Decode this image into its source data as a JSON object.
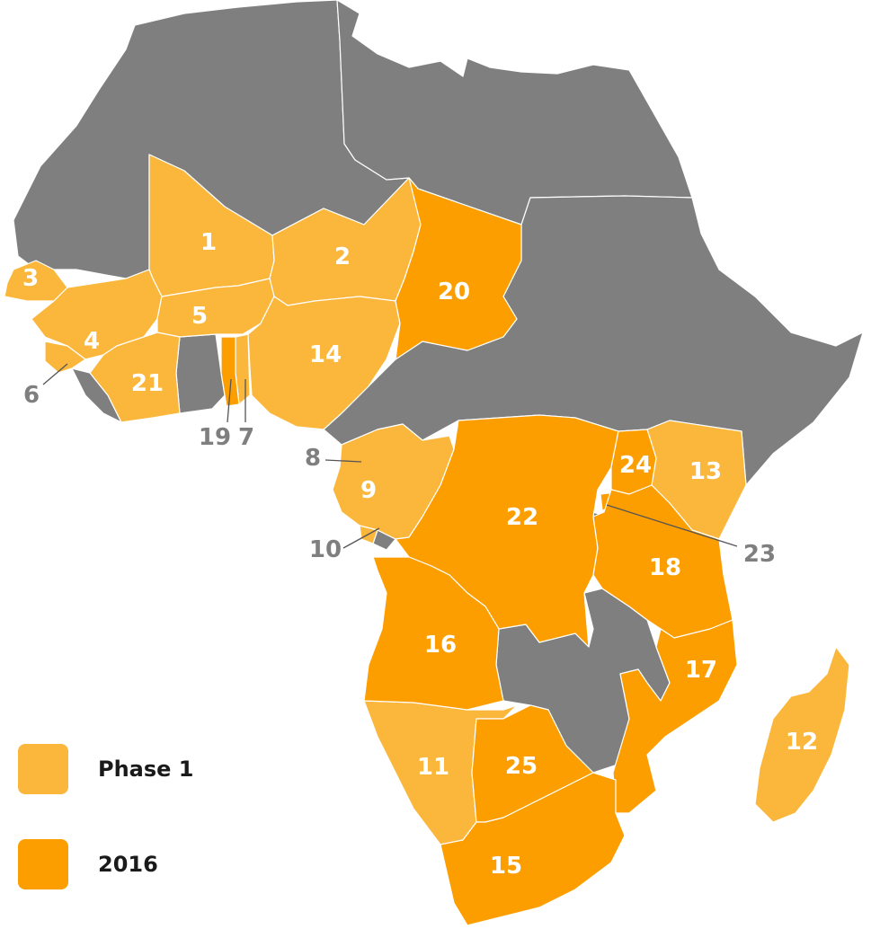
{
  "colors": {
    "other": "#7f7f7f",
    "phase1": "#fbb73c",
    "year2016": "#fd9e00",
    "border": "#ffffff",
    "callout_text": "#7f7f7f"
  },
  "legend": [
    {
      "label": "Phase 1",
      "color_key": "phase1"
    },
    {
      "label": "2016",
      "color_key": "year2016"
    }
  ],
  "labels": {
    "n1": "1",
    "n2": "2",
    "n3": "3",
    "n4": "4",
    "n5": "5",
    "n6": "6",
    "n7": "7",
    "n8": "8",
    "n9": "9",
    "n10": "10",
    "n11": "11",
    "n12": "12",
    "n13": "13",
    "n14": "14",
    "n15": "15",
    "n16": "16",
    "n17": "17",
    "n18": "18",
    "n19": "19",
    "n20": "20",
    "n21": "21",
    "n22": "22",
    "n23": "23",
    "n24": "24",
    "n25": "25"
  }
}
